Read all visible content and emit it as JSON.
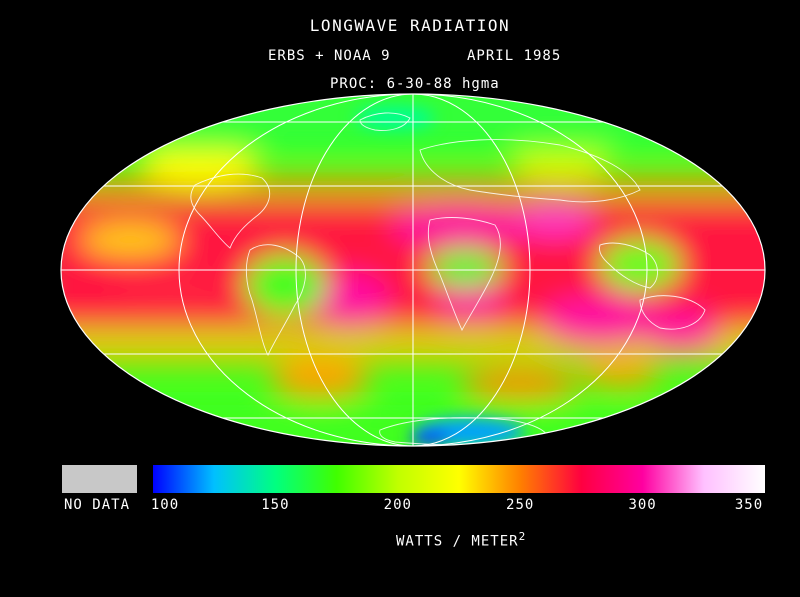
{
  "header": {
    "title": "LONGWAVE RADIATION",
    "satellites": "ERBS  +  NOAA 9",
    "date": "APRIL 1985",
    "processing": "PROC: 6-30-88 hgma"
  },
  "legend": {
    "no_data_label": "NO DATA",
    "no_data_color": "#c8c8c8",
    "ticks": [
      "100",
      "150",
      "200",
      "250",
      "300",
      "350"
    ],
    "range": [
      100,
      350
    ],
    "units_text": "WATTS / METER",
    "units_superscript": "2",
    "colors": [
      "#0000ff",
      "#00c0ff",
      "#00ff80",
      "#40ff00",
      "#c0ff00",
      "#ffff00",
      "#ff8000",
      "#ff0040",
      "#ff00a0",
      "#ffc0ff",
      "#ffffff"
    ]
  },
  "map": {
    "projection": "mollweide",
    "graticule": "white"
  }
}
